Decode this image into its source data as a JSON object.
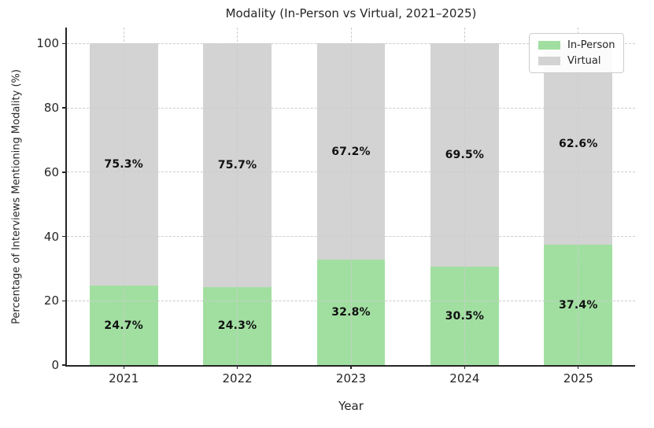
{
  "chart_data": {
    "type": "bar",
    "stacked": true,
    "title": "Modality (In-Person vs Virtual, 2021–2025)",
    "xlabel": "Year",
    "ylabel": "Percentage of Interviews Mentioning Modality (%)",
    "categories": [
      "2021",
      "2022",
      "2023",
      "2024",
      "2025"
    ],
    "series": [
      {
        "name": "In-Person",
        "color": "#a1dfa1",
        "values": [
          24.7,
          24.3,
          32.8,
          30.5,
          37.4
        ],
        "labels": [
          "24.7%",
          "24.3%",
          "32.8%",
          "30.5%",
          "37.4%"
        ]
      },
      {
        "name": "Virtual",
        "color": "#d3d3d3",
        "values": [
          75.3,
          75.7,
          67.2,
          69.5,
          62.6
        ],
        "labels": [
          "75.3%",
          "75.7%",
          "67.2%",
          "69.5%",
          "62.6%"
        ]
      }
    ],
    "ylim": [
      0,
      105
    ],
    "yticks": [
      0,
      20,
      40,
      60,
      80,
      100
    ],
    "grid": true,
    "grid_style": "dashed",
    "legend_position": "upper right",
    "bar_width_fraction": 0.6,
    "colors": {
      "grid": "#cccccc",
      "spine": "#262626",
      "text": "#262626",
      "label_text": "#111111",
      "background": "#ffffff"
    }
  }
}
